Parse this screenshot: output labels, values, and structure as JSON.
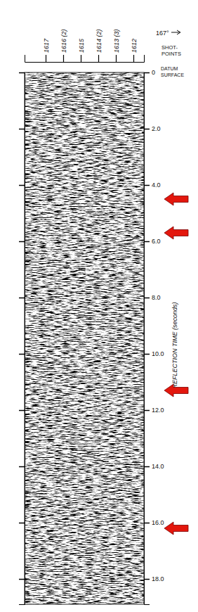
{
  "chart_data": {
    "type": "seismic",
    "azimuth_label": "167°",
    "x_label": [
      "SHOT-",
      "POINTS"
    ],
    "datum_label": [
      "DATUM",
      "SURFACE"
    ],
    "y_label": "REFLECTION TIME (seconds)",
    "xlim": [
      1618.2,
      1611.4
    ],
    "xticks": [
      {
        "value": 1617,
        "label": "1617"
      },
      {
        "value": 1616,
        "label": "1616 (2)"
      },
      {
        "value": 1615,
        "label": "1615"
      },
      {
        "value": 1614,
        "label": "1614 (2)"
      },
      {
        "value": 1613,
        "label": "1613 (3)"
      },
      {
        "value": 1612,
        "label": "1612"
      }
    ],
    "ylim": [
      0,
      18.9
    ],
    "yticks": [
      0,
      {
        "value": 2,
        "label": "2.0"
      },
      {
        "value": 4,
        "label": "4.0"
      },
      {
        "value": 6,
        "label": "6.0"
      },
      {
        "value": 8,
        "label": "8.0"
      },
      {
        "value": 10,
        "label": "10.0"
      },
      {
        "value": 12,
        "label": "12.0"
      },
      {
        "value": 14,
        "label": "14.0"
      },
      {
        "value": 16,
        "label": "16.0"
      },
      {
        "value": 18,
        "label": "18.0"
      }
    ],
    "arrows": {
      "values": [
        4.5,
        5.7,
        11.3,
        16.2
      ],
      "color": "#e3170d"
    },
    "grid": false
  }
}
